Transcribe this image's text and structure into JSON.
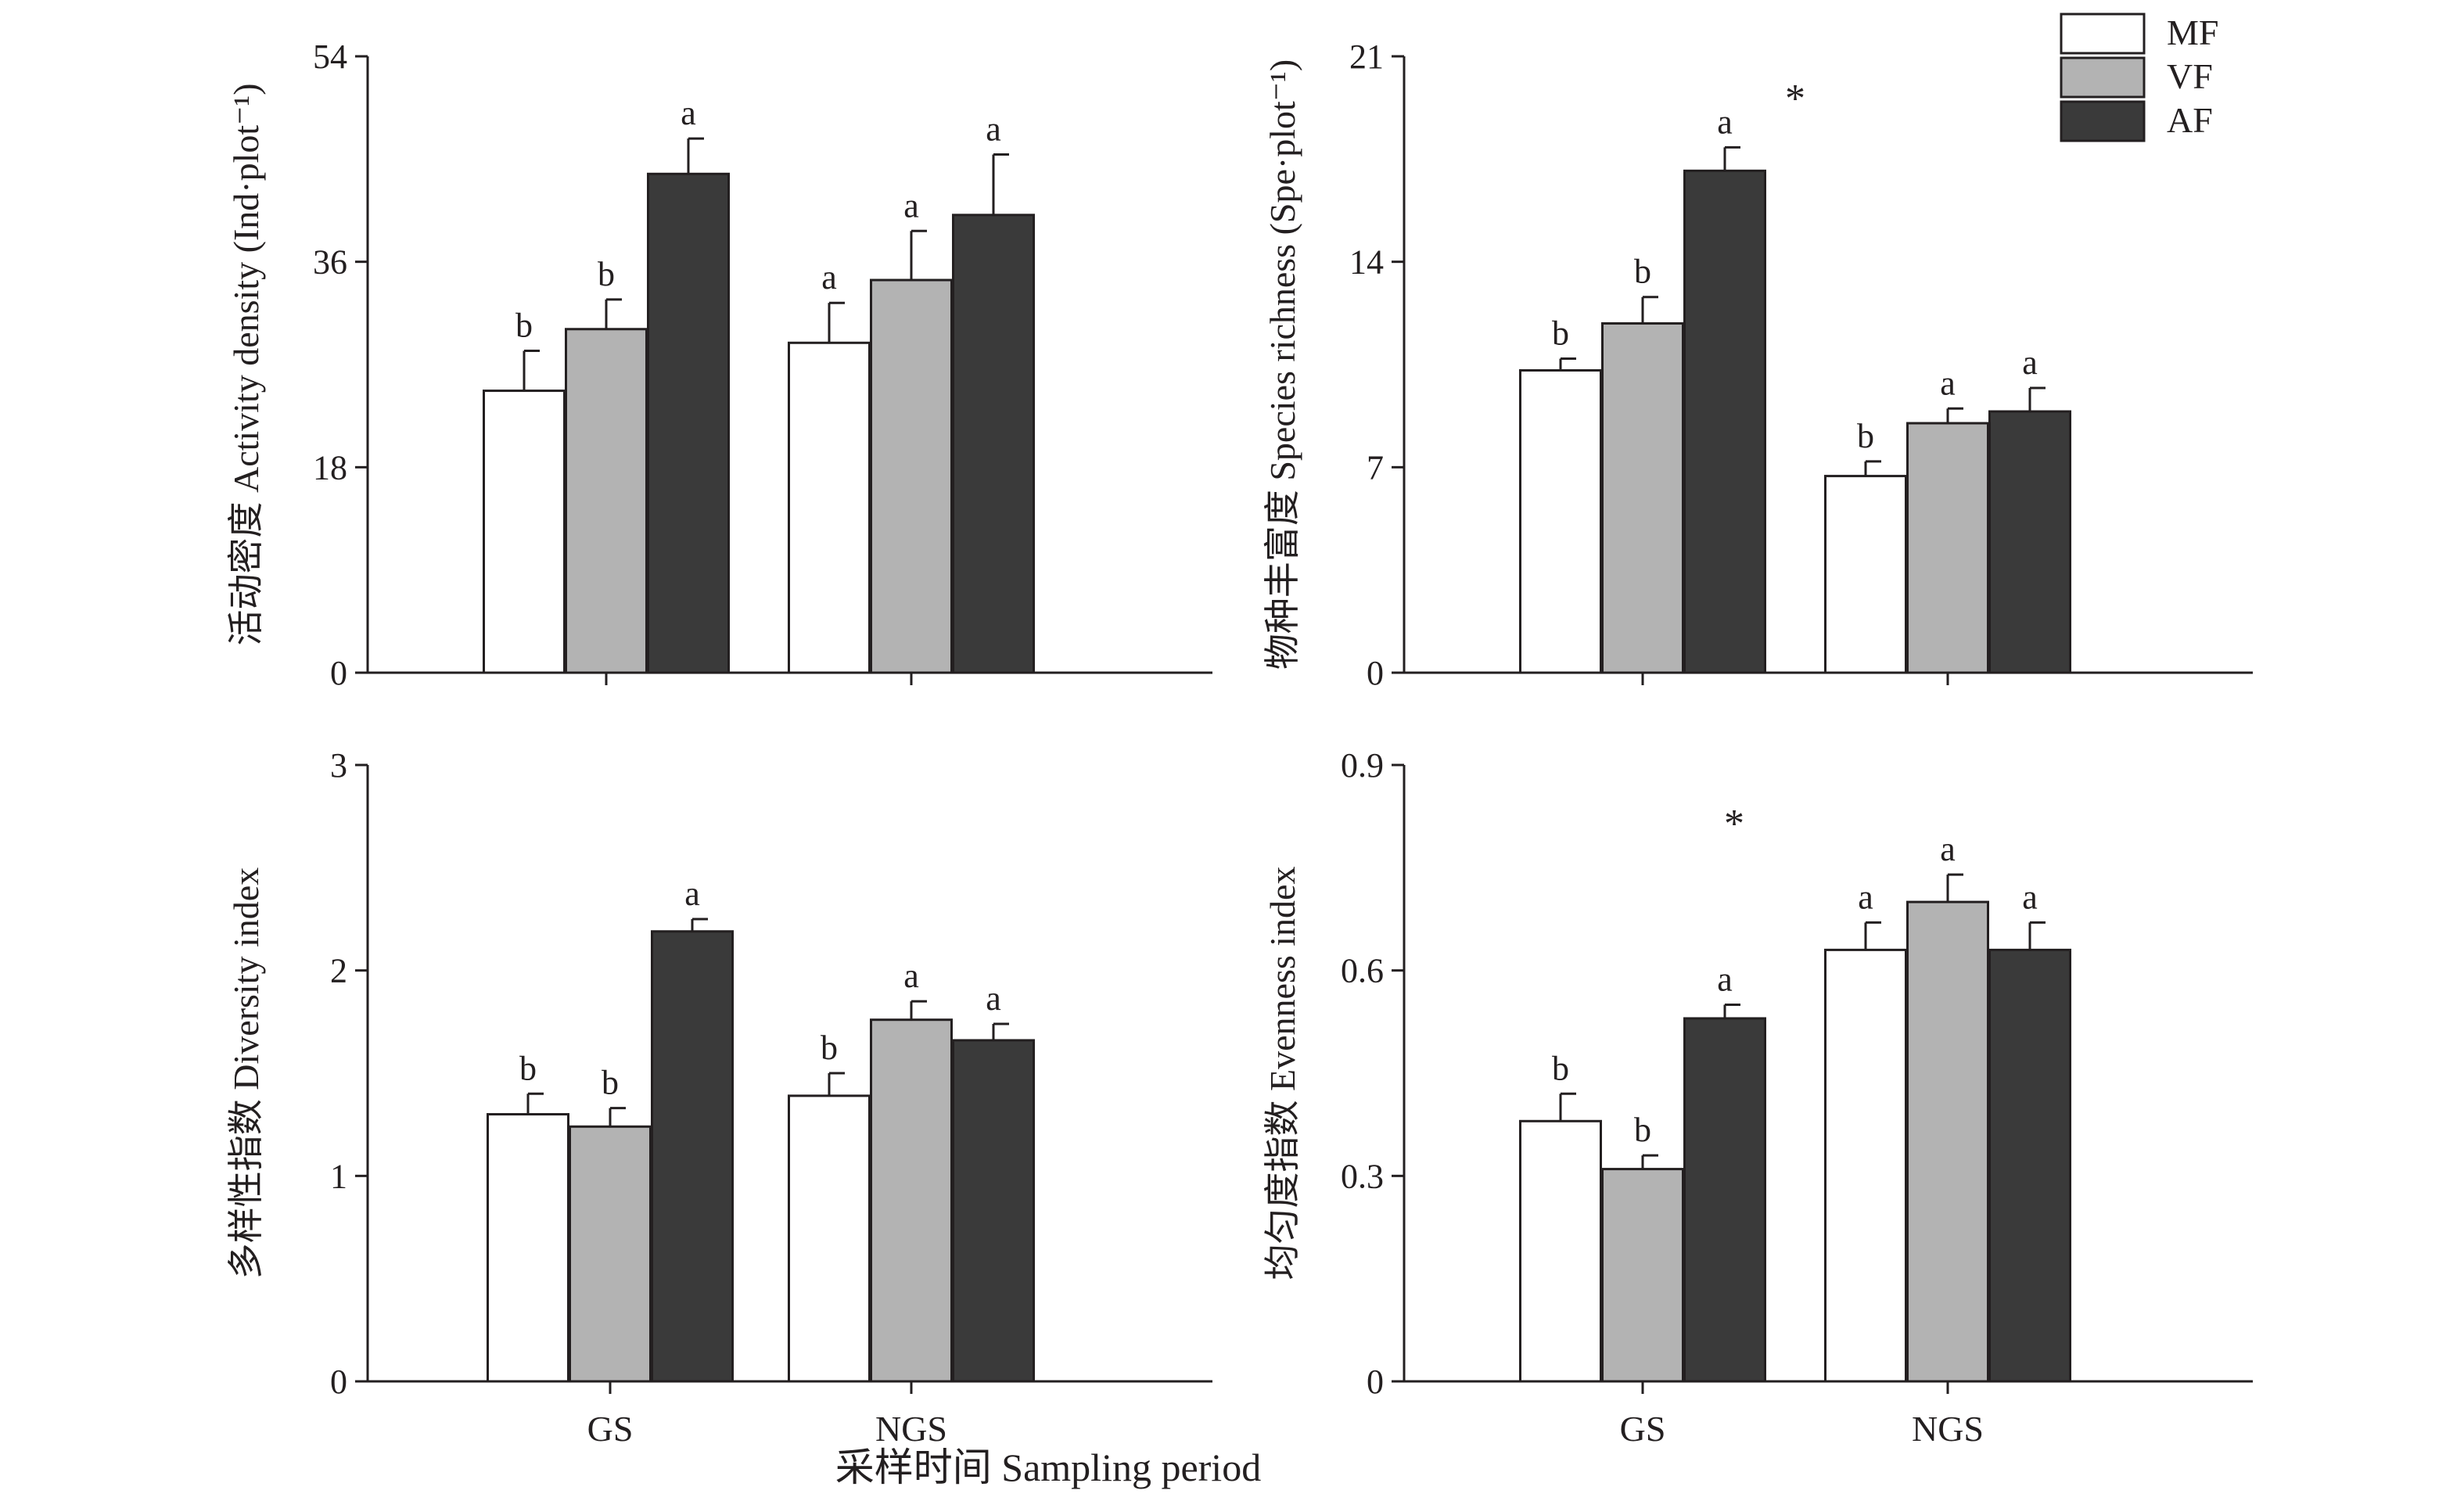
{
  "figure": {
    "xlabel": "采样时间 Sampling period",
    "legend": {
      "placement": "top-right",
      "entries": [
        {
          "label": "MF",
          "color": "#ffffff"
        },
        {
          "label": "VF",
          "color": "#b3b3b3"
        },
        {
          "label": "AF",
          "color": "#3a3a3a"
        }
      ]
    }
  },
  "chart_data": [
    {
      "type": "bar",
      "panel": "top-left",
      "ylabel": "活动密度 Activity density (Ind·plot⁻¹)",
      "ylim": [
        0,
        54
      ],
      "yticks": [
        0,
        18,
        36,
        54
      ],
      "ytick_labels": [
        "0",
        "18",
        "36",
        "54"
      ],
      "categories": [
        "GS",
        "NGS"
      ],
      "show_category_labels": false,
      "series": [
        {
          "name": "MF",
          "values": [
            24.7,
            28.9
          ],
          "errors": [
            3.5,
            3.5
          ],
          "letters": [
            "b",
            "a"
          ]
        },
        {
          "name": "VF",
          "values": [
            30.1,
            34.4
          ],
          "errors": [
            2.6,
            4.3
          ],
          "letters": [
            "b",
            "a"
          ]
        },
        {
          "name": "AF",
          "values": [
            43.7,
            40.1
          ],
          "errors": [
            3.1,
            5.3
          ],
          "letters": [
            "a",
            "a"
          ]
        }
      ],
      "annotations": []
    },
    {
      "type": "bar",
      "panel": "top-right",
      "ylabel": "物种丰富度 Species richness (Spe·plot⁻¹)",
      "ylim": [
        0,
        21
      ],
      "yticks": [
        0,
        7,
        14,
        21
      ],
      "ytick_labels": [
        "0",
        "7",
        "14",
        "21"
      ],
      "categories": [
        "GS",
        "NGS"
      ],
      "show_category_labels": false,
      "series": [
        {
          "name": "MF",
          "values": [
            10.3,
            6.7
          ],
          "errors": [
            0.4,
            0.5
          ],
          "letters": [
            "b",
            "b"
          ]
        },
        {
          "name": "VF",
          "values": [
            11.9,
            8.5
          ],
          "errors": [
            0.9,
            0.5
          ],
          "letters": [
            "b",
            "a"
          ]
        },
        {
          "name": "AF",
          "values": [
            17.1,
            8.9
          ],
          "errors": [
            0.8,
            0.8
          ],
          "letters": [
            "a",
            "a"
          ]
        }
      ],
      "annotations": [
        {
          "text": "*",
          "x_between": 0.5,
          "y": 19.7
        }
      ]
    },
    {
      "type": "bar",
      "panel": "bottom-left",
      "ylabel": "多样性指数 Diversity index",
      "ylim": [
        0,
        3
      ],
      "yticks": [
        0,
        1,
        2,
        3
      ],
      "ytick_labels": [
        "0",
        "1",
        "2",
        "3"
      ],
      "categories": [
        "GS",
        "NGS"
      ],
      "show_category_labels": true,
      "series": [
        {
          "name": "MF",
          "values": [
            1.3,
            1.39
          ],
          "errors": [
            0.1,
            0.11
          ],
          "letters": [
            "b",
            "b"
          ]
        },
        {
          "name": "VF",
          "values": [
            1.24,
            1.76
          ],
          "errors": [
            0.09,
            0.09
          ],
          "letters": [
            "b",
            "a"
          ]
        },
        {
          "name": "AF",
          "values": [
            2.19,
            1.66
          ],
          "errors": [
            0.06,
            0.08
          ],
          "letters": [
            "a",
            "a"
          ]
        }
      ],
      "annotations": []
    },
    {
      "type": "bar",
      "panel": "bottom-right",
      "ylabel": "均匀度指数 Evenness index",
      "ylim": [
        0,
        0.9
      ],
      "yticks": [
        0,
        0.3,
        0.6,
        0.9
      ],
      "ytick_labels": [
        "0",
        "0.3",
        "0.6",
        "0.9"
      ],
      "categories": [
        "GS",
        "NGS"
      ],
      "show_category_labels": true,
      "series": [
        {
          "name": "MF",
          "values": [
            0.38,
            0.63
          ],
          "errors": [
            0.04,
            0.04
          ],
          "letters": [
            "b",
            "a"
          ]
        },
        {
          "name": "VF",
          "values": [
            0.31,
            0.7
          ],
          "errors": [
            0.02,
            0.04
          ],
          "letters": [
            "b",
            "a"
          ]
        },
        {
          "name": "AF",
          "values": [
            0.53,
            0.63
          ],
          "errors": [
            0.02,
            0.04
          ],
          "letters": [
            "a",
            "a"
          ]
        }
      ],
      "annotations": [
        {
          "text": "*",
          "x_between": 0.3,
          "y": 0.82
        }
      ]
    }
  ]
}
